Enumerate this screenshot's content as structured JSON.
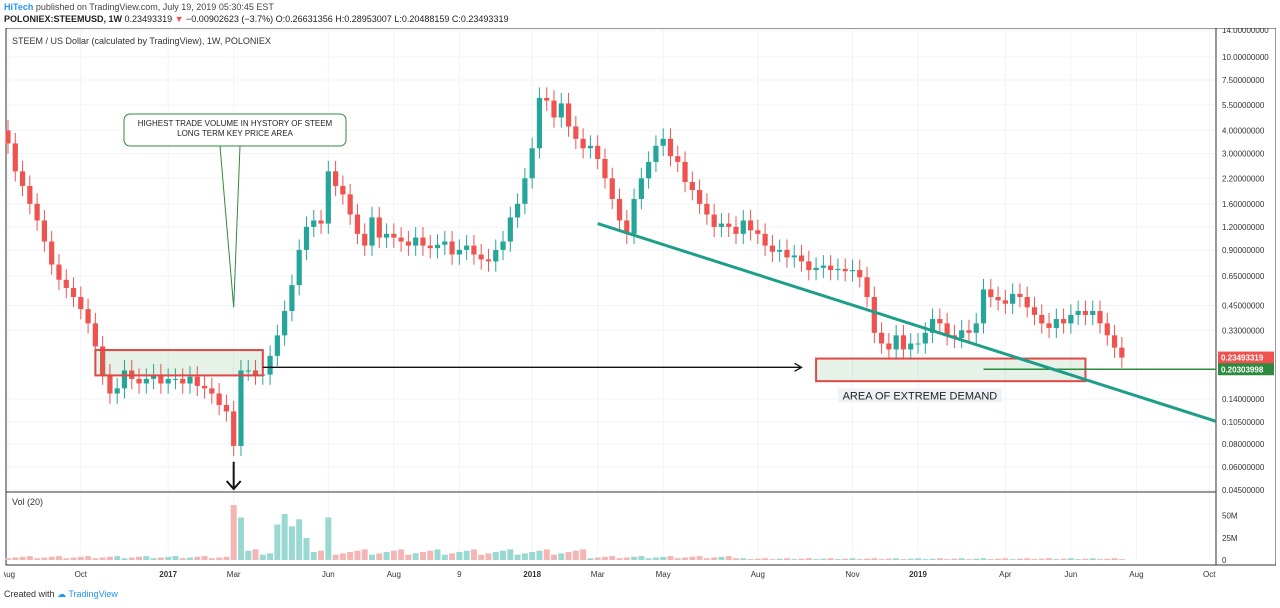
{
  "header": {
    "brand": "HiTech",
    "published_text": "published on TradingView.com, July 19, 2019 05:30:45 EST",
    "symbol": "POLONIEX:STEEMUSD, 1W",
    "last": "0.23493319",
    "change_arrow": "▼",
    "change": "−0.00902623 (−3.7%)",
    "ohlc": {
      "O": "0.26631356",
      "H": "0.28953007",
      "L": "0.20488159",
      "C": "0.23493319"
    }
  },
  "footer": {
    "created_with": "Created with",
    "tradingview": "TradingView"
  },
  "colors": {
    "up": "#26a69a",
    "down": "#ef5350",
    "vol_up": "#9ad9d2",
    "vol_down": "#f3b6b4",
    "trendline": "#1e9e88",
    "green_line": "#2e8b3e",
    "grid": "#f0f3fa"
  },
  "chart_data": {
    "type": "candlestick",
    "title": "STEEM / US Dollar (calculated by TradingView), 1W, POLONIEX",
    "scale": "log",
    "y_ticks": [
      "14.00000000",
      "10.00000000",
      "7.50000000",
      "5.50000000",
      "4.00000000",
      "3.00000000",
      "2.20000000",
      "1.60000000",
      "1.20000000",
      "0.90000000",
      "0.65000000",
      "0.45000000",
      "0.33000000",
      "0.14000000",
      "0.10500000",
      "0.08000000",
      "0.06000000",
      "0.04500000"
    ],
    "y_tick_values": [
      14,
      10,
      7.5,
      5.5,
      4,
      3,
      2.2,
      1.6,
      1.2,
      0.9,
      0.65,
      0.45,
      0.33,
      0.14,
      0.105,
      0.08,
      0.06,
      0.045
    ],
    "x_labels": [
      "Aug",
      "Oct",
      "2017",
      "Mar",
      "Jun",
      "Aug",
      "9",
      "2018",
      "Mar",
      "May",
      "Aug",
      "Nov",
      "2019",
      "Apr",
      "Jun",
      "Aug",
      "Oct"
    ],
    "x_label_weeks": [
      0,
      10,
      22,
      31,
      44,
      53,
      62,
      72,
      81,
      90,
      103,
      116,
      125,
      137,
      146,
      155,
      165
    ],
    "price_labels": [
      {
        "text": "0.23493319",
        "value": 0.23493319,
        "color": "#ef5350"
      },
      {
        "text": "0.20303998",
        "value": 0.20303998,
        "color": "#2e8b3e"
      }
    ],
    "weekly_closes": [
      3.4,
      2.4,
      2.0,
      1.6,
      1.3,
      1.0,
      0.75,
      0.62,
      0.56,
      0.5,
      0.43,
      0.36,
      0.27,
      0.19,
      0.15,
      0.16,
      0.2,
      0.18,
      0.17,
      0.18,
      0.19,
      0.17,
      0.18,
      0.18,
      0.17,
      0.185,
      0.165,
      0.16,
      0.15,
      0.13,
      0.12,
      0.078,
      0.2,
      0.2,
      0.19,
      0.19,
      0.24,
      0.31,
      0.42,
      0.58,
      0.9,
      1.2,
      1.3,
      1.25,
      2.4,
      2.0,
      1.8,
      1.4,
      1.1,
      0.95,
      1.35,
      1.05,
      1.1,
      1.05,
      1.0,
      0.95,
      1.05,
      0.95,
      0.92,
      0.96,
      1.0,
      0.85,
      0.9,
      0.95,
      0.85,
      0.8,
      0.78,
      0.9,
      1.0,
      1.35,
      1.6,
      2.2,
      3.2,
      6.0,
      5.8,
      4.7,
      5.6,
      4.2,
      3.6,
      3.2,
      3.3,
      2.8,
      2.2,
      1.7,
      1.3,
      1.1,
      1.7,
      2.2,
      2.7,
      3.3,
      3.6,
      2.9,
      2.7,
      2.1,
      1.9,
      1.6,
      1.4,
      1.2,
      1.25,
      1.2,
      1.1,
      1.3,
      1.15,
      1.1,
      0.95,
      0.88,
      0.9,
      0.82,
      0.84,
      0.78,
      0.7,
      0.72,
      0.74,
      0.7,
      0.71,
      0.69,
      0.7,
      0.64,
      0.5,
      0.32,
      0.28,
      0.26,
      0.31,
      0.26,
      0.28,
      0.28,
      0.32,
      0.38,
      0.36,
      0.31,
      0.3,
      0.33,
      0.32,
      0.36,
      0.55,
      0.5,
      0.48,
      0.46,
      0.52,
      0.5,
      0.44,
      0.4,
      0.36,
      0.34,
      0.38,
      0.36,
      0.4,
      0.42,
      0.4,
      0.42,
      0.36,
      0.31,
      0.266,
      0.23493319
    ],
    "volume_axis": {
      "labels": [
        "50M",
        "25M",
        "0"
      ],
      "values": [
        50,
        25,
        0
      ]
    },
    "volume_label": "Vol (20)",
    "volume_spikes": [
      {
        "week": 31,
        "value": 62
      },
      {
        "week": 32,
        "value": 48
      },
      {
        "week": 37,
        "value": 40
      },
      {
        "week": 38,
        "value": 52
      },
      {
        "week": 39,
        "value": 38
      },
      {
        "week": 40,
        "value": 46
      },
      {
        "week": 41,
        "value": 25
      },
      {
        "week": 44,
        "value": 48
      }
    ],
    "annotations": [
      {
        "text_lines": [
          "HIGHEST TRADE VOLUME IN HYSTORY OF STEEM",
          "LONG TERM KEY PRICE AREA"
        ],
        "type": "callout"
      },
      {
        "text": "AREA OF EXTREME DEMAND",
        "type": "label"
      }
    ]
  }
}
